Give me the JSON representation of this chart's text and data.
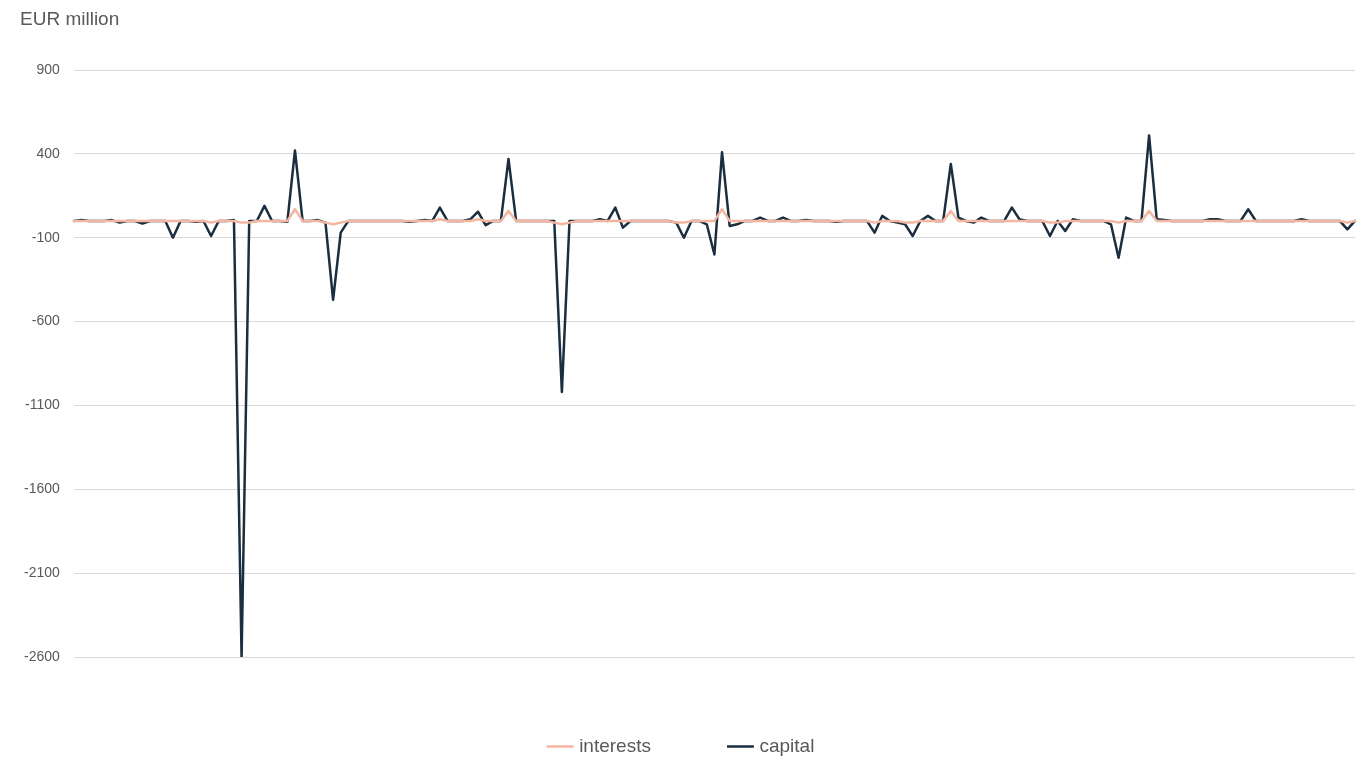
{
  "chart_data": {
    "type": "line",
    "ylabel": "EUR million",
    "categories": [
      null,
      null,
      null,
      null,
      null,
      null,
      null,
      null,
      null,
      null,
      null,
      null,
      null,
      null,
      null,
      null,
      null,
      null,
      null,
      null,
      null,
      null,
      null,
      null,
      null,
      null,
      null,
      null,
      null,
      null,
      null,
      null,
      null,
      null,
      null,
      null,
      null,
      null,
      null,
      null,
      null,
      null,
      null,
      null,
      null,
      null,
      null,
      null,
      null,
      null,
      null,
      null,
      null,
      null,
      null,
      null,
      null,
      null,
      null,
      null,
      null,
      null,
      null,
      null,
      null,
      null,
      null,
      null,
      null,
      null,
      null,
      null,
      null,
      null,
      null,
      null,
      null,
      null,
      null,
      null,
      null,
      null,
      null,
      null,
      null,
      null,
      null,
      null,
      null,
      null,
      null,
      null,
      null,
      null,
      null,
      null,
      null,
      null,
      null,
      null,
      null,
      null,
      null,
      null,
      null,
      null,
      null,
      null,
      null,
      null,
      null,
      null,
      null,
      null,
      null,
      null,
      null,
      null,
      null,
      null,
      null,
      null,
      null,
      null,
      null,
      null,
      null,
      null,
      null,
      null,
      null,
      null,
      null,
      null,
      null,
      null,
      null,
      null,
      null,
      null,
      null,
      null,
      null,
      null,
      null,
      null,
      null,
      null,
      null,
      null,
      null,
      null,
      null,
      null,
      null,
      null,
      null,
      null,
      null,
      null,
      null,
      null,
      null,
      null,
      null,
      null,
      null,
      null,
      null
    ],
    "series": [
      {
        "name": "interests",
        "color": "#f4b6a0",
        "values": [
          0,
          0,
          0,
          0,
          0,
          0,
          0,
          0,
          0,
          0,
          0,
          0,
          0,
          0,
          0,
          0,
          0,
          0,
          -10,
          0,
          0,
          0,
          -10,
          -10,
          0,
          0,
          0,
          0,
          0,
          70,
          0,
          0,
          0,
          -10,
          -20,
          -10,
          0,
          0,
          0,
          0,
          0,
          0,
          0,
          0,
          0,
          0,
          0,
          0,
          10,
          0,
          0,
          0,
          0,
          10,
          0,
          0,
          0,
          60,
          0,
          0,
          0,
          0,
          0,
          -10,
          -20,
          -10,
          0,
          0,
          0,
          0,
          0,
          0,
          0,
          0,
          0,
          0,
          0,
          0,
          0,
          -10,
          -10,
          0,
          0,
          0,
          0,
          70,
          0,
          0,
          0,
          0,
          0,
          0,
          0,
          0,
          0,
          0,
          0,
          0,
          0,
          0,
          0,
          0,
          0,
          0,
          0,
          -10,
          0,
          0,
          0,
          -10,
          -10,
          0,
          0,
          0,
          0,
          60,
          0,
          0,
          0,
          0,
          0,
          0,
          0,
          0,
          0,
          0,
          0,
          0,
          -10,
          -10,
          0,
          0,
          0,
          0,
          0,
          0,
          0,
          -10,
          0,
          0,
          0,
          60,
          0,
          0,
          0,
          0,
          0,
          0,
          0,
          0,
          0,
          0,
          0,
          0,
          0,
          0,
          0,
          0,
          0,
          0,
          0,
          0,
          0,
          0,
          0,
          0,
          0,
          -10,
          0
        ]
      },
      {
        "name": "capital",
        "color": "#1a2e3f",
        "values": [
          0,
          5,
          0,
          0,
          0,
          5,
          -10,
          0,
          0,
          -15,
          0,
          0,
          0,
          -100,
          0,
          0,
          -5,
          0,
          -90,
          0,
          0,
          5,
          -2600,
          0,
          0,
          90,
          0,
          0,
          -5,
          420,
          0,
          0,
          5,
          -10,
          -470,
          -70,
          0,
          0,
          0,
          0,
          0,
          0,
          0,
          0,
          -5,
          0,
          5,
          0,
          80,
          0,
          0,
          0,
          10,
          55,
          -25,
          0,
          0,
          370,
          0,
          0,
          0,
          0,
          0,
          0,
          -1020,
          0,
          0,
          0,
          0,
          10,
          0,
          80,
          -40,
          0,
          0,
          0,
          0,
          0,
          0,
          -10,
          -100,
          0,
          0,
          -20,
          -200,
          410,
          -30,
          -20,
          0,
          0,
          20,
          0,
          0,
          20,
          0,
          0,
          5,
          0,
          0,
          0,
          -5,
          0,
          0,
          0,
          0,
          -70,
          30,
          0,
          -10,
          -20,
          -90,
          0,
          30,
          0,
          0,
          340,
          20,
          0,
          -10,
          20,
          0,
          0,
          0,
          80,
          10,
          0,
          0,
          0,
          -90,
          0,
          -60,
          10,
          0,
          0,
          0,
          0,
          -20,
          -220,
          20,
          0,
          0,
          510,
          10,
          5,
          0,
          0,
          0,
          0,
          0,
          10,
          10,
          0,
          0,
          0,
          70,
          0,
          0,
          0,
          0,
          0,
          0,
          10,
          0,
          0,
          0,
          0,
          0,
          -50,
          0
        ]
      }
    ],
    "ylim": [
      -2600,
      900
    ],
    "yticks": [
      -2600,
      -2100,
      -1600,
      -1100,
      -600,
      -100,
      400,
      900
    ],
    "grid": "y",
    "legend": "bottom",
    "tick_labels": "y",
    "marker": "none",
    "line_style": "solid"
  }
}
